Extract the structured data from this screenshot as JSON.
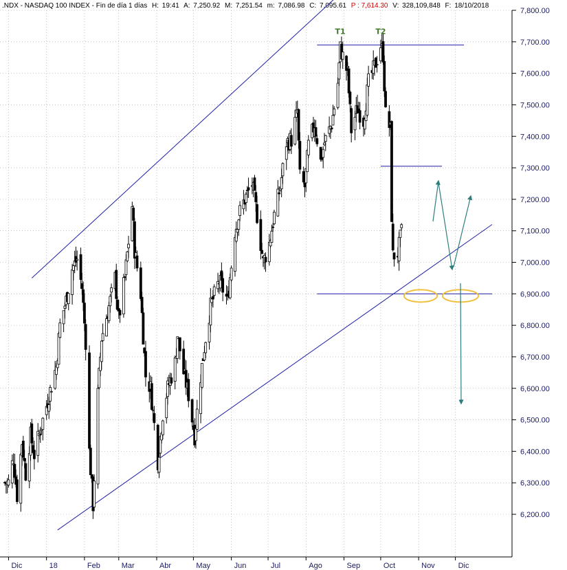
{
  "header": {
    "symbol": ".NDX",
    "name": "NASDAQ 100 INDEX",
    "period": "Fin de día 1 días",
    "h_label": "H:",
    "h_value": "19:41",
    "a_label": "A:",
    "a_value": "7,250.92",
    "m_label": "M:",
    "m_value": "7,251.54",
    "mm_label": "m:",
    "mm_value": "7,086.98",
    "c_label": "C:",
    "c_value": "7,095.61",
    "p_label": "P",
    "p_value": ": 7,614.30",
    "v_label": "V:",
    "v_value": "328,109,848",
    "f_label": "F:",
    "f_value": "18/10/2018"
  },
  "colors": {
    "candle": "#000000",
    "trendline": "#1f1fa8",
    "support": "#1f1fa8",
    "grid": "#9a9a9a",
    "arrow": "#2e7d7d",
    "circle": "#f0c040",
    "peak_label": "#3d7a2a",
    "p_value": "#cc0000"
  },
  "chart_data": {
    "type": "candlestick",
    "title": ".NDX - NASDAQ 100 INDEX - Fin de día 1 días",
    "y_axis_side": "right",
    "ylim": [
      6100,
      7850
    ],
    "yticks": [
      6200,
      6300,
      6400,
      6500,
      6600,
      6700,
      6800,
      6900,
      7000,
      7100,
      7200,
      7300,
      7400,
      7500,
      7600,
      7700,
      7800
    ],
    "ytick_labels": [
      "6,200.00",
      "6,300.00",
      "6,400.00",
      "6,500.00",
      "6,600.00",
      "6,700.00",
      "6,800.00",
      "6,900.00",
      "7,000.00",
      "7,100.00",
      "7,200.00",
      "7,300.00",
      "7,400.00",
      "7,500.00",
      "7,600.00",
      "7,700.00",
      "7,800.00"
    ],
    "x_labels": [
      "Dic",
      "18",
      "Feb",
      "Mar",
      "Abr",
      "May",
      "Jun",
      "Jul",
      "Ago",
      "Sep",
      "Oct",
      "Nov",
      "Dic"
    ],
    "grid": true,
    "close_path": [
      [
        "2017-12-01",
        6300
      ],
      [
        "2017-12-05",
        6380
      ],
      [
        "2017-12-08",
        6260
      ],
      [
        "2017-12-12",
        6430
      ],
      [
        "2017-12-15",
        6330
      ],
      [
        "2017-12-19",
        6450
      ],
      [
        "2017-12-22",
        6390
      ],
      [
        "2017-12-27",
        6470
      ],
      [
        "2018-01-02",
        6560
      ],
      [
        "2018-01-05",
        6610
      ],
      [
        "2018-01-09",
        6670
      ],
      [
        "2018-01-12",
        6800
      ],
      [
        "2018-01-17",
        6880
      ],
      [
        "2018-01-22",
        6980
      ],
      [
        "2018-01-26",
        7010
      ],
      [
        "2018-01-30",
        6920
      ],
      [
        "2018-02-02",
        6750
      ],
      [
        "2018-02-05",
        6400
      ],
      [
        "2018-02-08",
        6230
      ],
      [
        "2018-02-12",
        6580
      ],
      [
        "2018-02-15",
        6760
      ],
      [
        "2018-02-21",
        6860
      ],
      [
        "2018-02-26",
        6950
      ],
      [
        "2018-03-01",
        6820
      ],
      [
        "2018-03-06",
        6950
      ],
      [
        "2018-03-12",
        7180
      ],
      [
        "2018-03-14",
        7040
      ],
      [
        "2018-03-19",
        6900
      ],
      [
        "2018-03-23",
        6640
      ],
      [
        "2018-03-27",
        6600
      ],
      [
        "2018-04-02",
        6370
      ],
      [
        "2018-04-06",
        6520
      ],
      [
        "2018-04-10",
        6600
      ],
      [
        "2018-04-16",
        6680
      ],
      [
        "2018-04-18",
        6770
      ],
      [
        "2018-04-23",
        6650
      ],
      [
        "2018-04-27",
        6580
      ],
      [
        "2018-05-02",
        6450
      ],
      [
        "2018-05-07",
        6640
      ],
      [
        "2018-05-11",
        6760
      ],
      [
        "2018-05-15",
        6860
      ],
      [
        "2018-05-22",
        6940
      ],
      [
        "2018-05-29",
        6880
      ],
      [
        "2018-06-04",
        7100
      ],
      [
        "2018-06-08",
        7160
      ],
      [
        "2018-06-12",
        7200
      ],
      [
        "2018-06-18",
        7250
      ],
      [
        "2018-06-22",
        7150
      ],
      [
        "2018-06-27",
        7000
      ],
      [
        "2018-07-02",
        7060
      ],
      [
        "2018-07-06",
        7150
      ],
      [
        "2018-07-11",
        7240
      ],
      [
        "2018-07-16",
        7380
      ],
      [
        "2018-07-20",
        7390
      ],
      [
        "2018-07-25",
        7480
      ],
      [
        "2018-07-27",
        7270
      ],
      [
        "2018-07-31",
        7240
      ],
      [
        "2018-08-03",
        7370
      ],
      [
        "2018-08-08",
        7440
      ],
      [
        "2018-08-13",
        7320
      ],
      [
        "2018-08-16",
        7380
      ],
      [
        "2018-08-22",
        7440
      ],
      [
        "2018-08-27",
        7570
      ],
      [
        "2018-08-29",
        7680
      ],
      [
        "2018-09-04",
        7600
      ],
      [
        "2018-09-07",
        7420
      ],
      [
        "2018-09-12",
        7490
      ],
      [
        "2018-09-17",
        7450
      ],
      [
        "2018-09-21",
        7570
      ],
      [
        "2018-09-26",
        7620
      ],
      [
        "2018-10-01",
        7690
      ],
      [
        "2018-10-03",
        7660
      ],
      [
        "2018-10-05",
        7470
      ],
      [
        "2018-10-09",
        7420
      ],
      [
        "2018-10-10",
        7150
      ],
      [
        "2018-10-11",
        7020
      ],
      [
        "2018-10-15",
        7030
      ],
      [
        "2018-10-18",
        7095
      ]
    ],
    "trendlines": [
      {
        "name": "upper-channel",
        "from": [
          "2017-12-20",
          6950
        ],
        "to": [
          "2018-08-28",
          7850
        ]
      },
      {
        "name": "lower-channel",
        "from": [
          "2018-01-10",
          6150
        ],
        "to": [
          "2018-12-31",
          7120
        ]
      }
    ],
    "horizontal_levels": [
      {
        "name": "resistance",
        "value": 7690,
        "from": "2018-08-10",
        "to": "2018-12-08"
      },
      {
        "name": "intermediate",
        "value": 7305,
        "from": "2018-10-01",
        "to": "2018-11-20"
      },
      {
        "name": "support",
        "value": 6900,
        "from": "2018-08-10",
        "to": "2018-12-31"
      }
    ],
    "annotations": [
      {
        "text": "T1",
        "date": "2018-08-29",
        "value": 7720
      },
      {
        "text": "T2",
        "date": "2018-10-01",
        "value": 7720
      }
    ]
  }
}
